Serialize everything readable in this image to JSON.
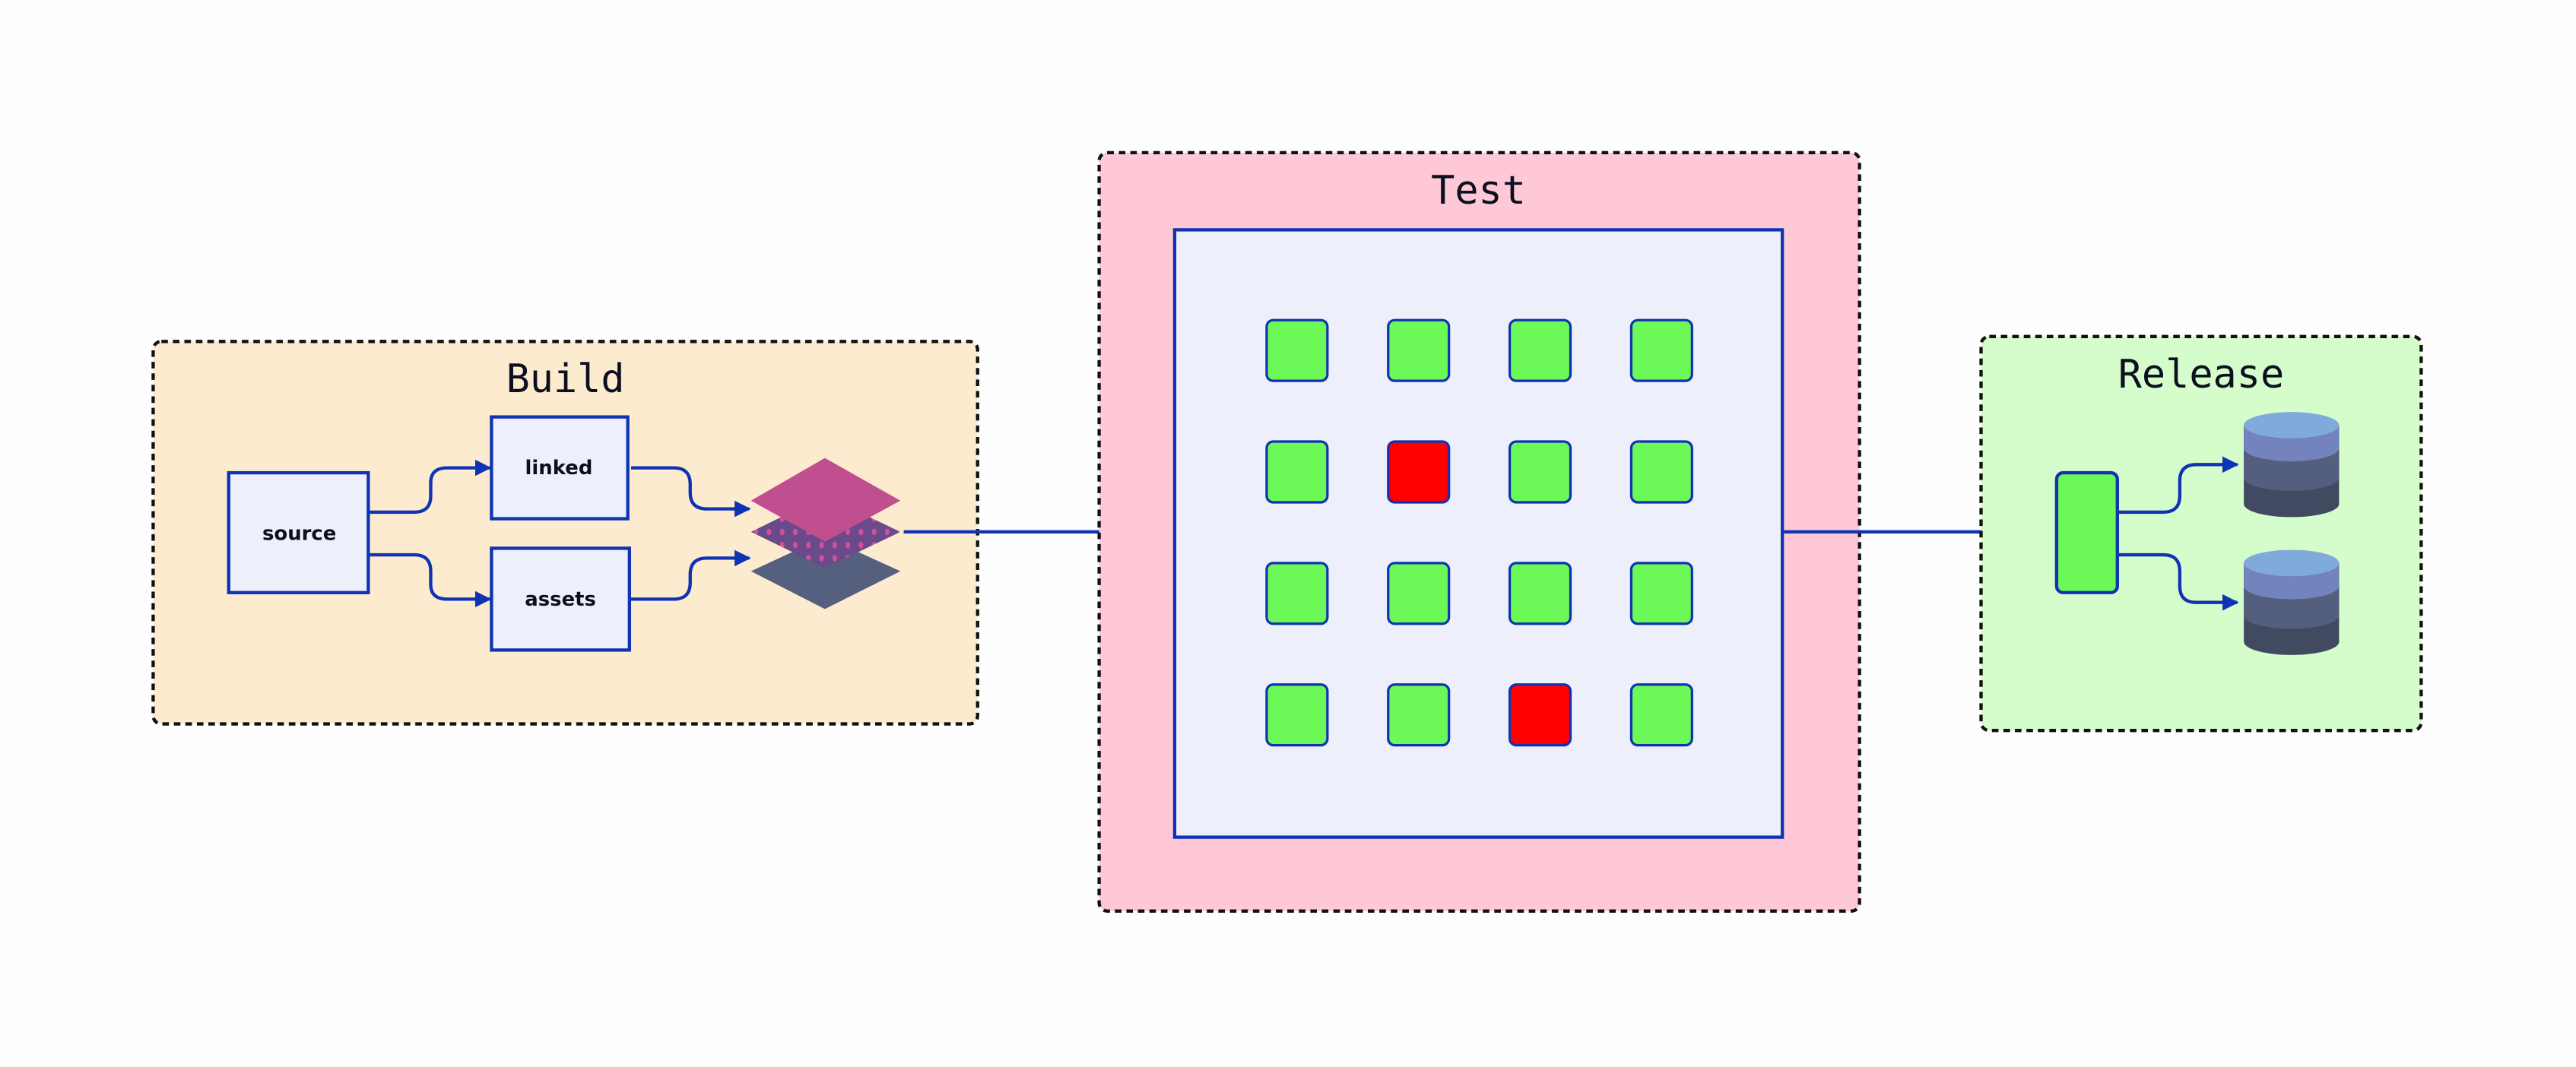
{
  "stages": {
    "build": {
      "title": "Build",
      "nodes": {
        "source": "source",
        "linked": "linked",
        "assets": "assets"
      },
      "fill": "#fdebcf"
    },
    "test": {
      "title": "Test",
      "fill": "#ffc8d6",
      "grid": [
        [
          "pass",
          "pass",
          "pass",
          "pass"
        ],
        [
          "pass",
          "fail",
          "pass",
          "pass"
        ],
        [
          "pass",
          "pass",
          "pass",
          "pass"
        ],
        [
          "pass",
          "pass",
          "fail",
          "pass"
        ]
      ]
    },
    "release": {
      "title": "Release",
      "fill": "#d5fdcc"
    }
  },
  "colors": {
    "edge": "#0f33b3",
    "pass": "#6cf957",
    "fail": "#ff0000",
    "node": "#edf0fb"
  },
  "icons": {
    "artifact": "layers-icon",
    "storage": "database-icon"
  }
}
